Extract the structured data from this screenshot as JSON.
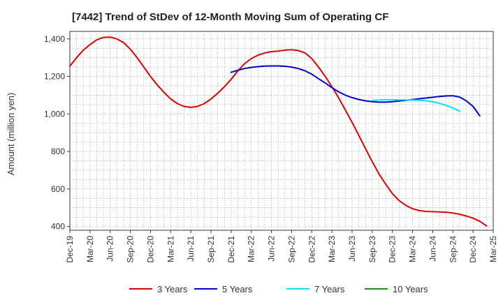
{
  "chart_data": {
    "type": "line",
    "title": "[7442]  Trend of StDev of 12-Month Moving Sum of Operating CF",
    "xlabel": "",
    "ylabel": "Amount (million yen)",
    "ylim": [
      380,
      1440
    ],
    "yticks": [
      400,
      600,
      800,
      1000,
      1200,
      1400
    ],
    "ytick_labels": [
      "400",
      "600",
      "800",
      "1,000",
      "1,200",
      "1,400"
    ],
    "x_start": "Dec-19",
    "x_end": "Mar-25",
    "xtick_labels": [
      "Dec-19",
      "Mar-20",
      "Jun-20",
      "Sep-20",
      "Dec-20",
      "Mar-21",
      "Jun-21",
      "Sep-21",
      "Dec-21",
      "Mar-22",
      "Jun-22",
      "Sep-22",
      "Dec-22",
      "Mar-23",
      "Jun-23",
      "Sep-23",
      "Dec-23",
      "Mar-24",
      "Jun-24",
      "Sep-24",
      "Dec-24",
      "Mar-25"
    ],
    "grid": true,
    "legend_position": "bottom",
    "series": [
      {
        "name": "3 Years",
        "color": "#dd0000",
        "start_month_index": 0,
        "values": [
          1255,
          1300,
          1340,
          1370,
          1395,
          1408,
          1410,
          1400,
          1380,
          1345,
          1300,
          1250,
          1200,
          1155,
          1115,
          1080,
          1055,
          1040,
          1035,
          1040,
          1055,
          1080,
          1110,
          1145,
          1185,
          1230,
          1268,
          1295,
          1313,
          1325,
          1332,
          1335,
          1340,
          1342,
          1338,
          1325,
          1295,
          1250,
          1200,
          1145,
          1085,
          1020,
          955,
          885,
          815,
          745,
          680,
          625,
          575,
          538,
          512,
          495,
          485,
          480,
          479,
          478,
          476,
          472,
          465,
          456,
          444,
          428,
          403
        ]
      },
      {
        "name": "5 Years",
        "color": "#0000cc",
        "start_month_index": 24,
        "values": [
          1222,
          1233,
          1242,
          1248,
          1252,
          1255,
          1256,
          1256,
          1254,
          1250,
          1242,
          1230,
          1212,
          1188,
          1165,
          1140,
          1118,
          1100,
          1087,
          1077,
          1070,
          1065,
          1063,
          1063,
          1065,
          1069,
          1073,
          1077,
          1081,
          1085,
          1089,
          1093,
          1096,
          1097,
          1090,
          1070,
          1040,
          990
        ]
      },
      {
        "name": "7 Years",
        "color": "#00e5ee",
        "start_month_index": 45,
        "values": [
          1072,
          1074,
          1075,
          1075,
          1075,
          1075,
          1074,
          1073,
          1070,
          1065,
          1057,
          1045,
          1032,
          1015
        ]
      },
      {
        "name": "10 Years",
        "color": "#228b22",
        "start_month_index": 0,
        "values": []
      }
    ]
  }
}
